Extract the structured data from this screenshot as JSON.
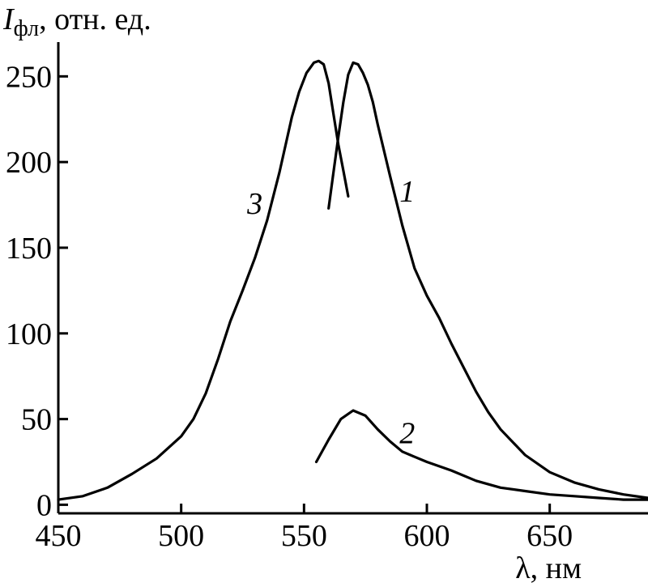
{
  "chart_data": {
    "type": "line",
    "ylabel": {
      "symbol": "I",
      "subscript": "фл",
      "unit": ", отн. ед."
    },
    "xlabel": "λ, нм",
    "xlim": [
      450,
      690
    ],
    "ylim": [
      -5,
      270
    ],
    "xticks": [
      450,
      500,
      550,
      600,
      650
    ],
    "yticks": [
      0,
      50,
      100,
      150,
      200,
      250
    ],
    "grid": false,
    "series": [
      {
        "label": "1",
        "x": [
          560,
          562,
          564,
          566,
          568,
          570,
          572,
          574,
          576,
          578,
          580,
          585,
          590,
          595,
          600,
          605,
          610,
          615,
          620,
          625,
          630,
          640,
          650,
          660,
          670,
          680,
          690
        ],
        "y": [
          173,
          194,
          215,
          235,
          251,
          258,
          257,
          252,
          245,
          235,
          222,
          192,
          163,
          138,
          122,
          109,
          94,
          80,
          66,
          54,
          44,
          29,
          19,
          13,
          9,
          6,
          4
        ]
      },
      {
        "label": "2",
        "x": [
          555,
          560,
          565,
          570,
          575,
          580,
          585,
          590,
          595,
          600,
          610,
          620,
          630,
          640,
          650,
          660,
          670,
          680,
          690
        ],
        "y": [
          25,
          38,
          50,
          55,
          52,
          44,
          37,
          31,
          28,
          25,
          20,
          14,
          10,
          8,
          6,
          5,
          4,
          3,
          3
        ]
      },
      {
        "label": "3",
        "x": [
          450,
          460,
          470,
          480,
          490,
          500,
          505,
          510,
          515,
          520,
          525,
          530,
          535,
          540,
          545,
          548,
          551,
          554,
          556,
          558,
          560,
          562,
          564,
          566,
          568
        ],
        "y": [
          3,
          5,
          10,
          18,
          27,
          40,
          50,
          65,
          85,
          107,
          125,
          144,
          166,
          194,
          226,
          241,
          252,
          258,
          259,
          257,
          246,
          228,
          210,
          195,
          180
        ]
      }
    ]
  }
}
